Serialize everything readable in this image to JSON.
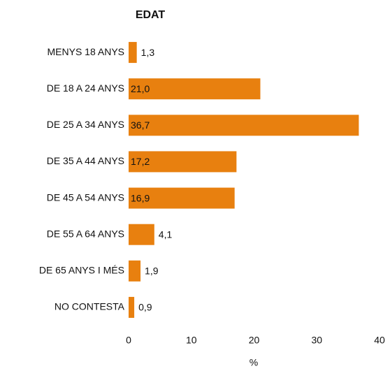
{
  "chart_data": {
    "type": "bar",
    "orientation": "horizontal",
    "title": "EDAT",
    "categories": [
      "MENYS 18 ANYS",
      "DE 18 A 24 ANYS",
      "DE 25 A 34 ANYS",
      "DE 35 A 44 ANYS",
      "DE 45 A 54 ANYS",
      "DE 55 A 64 ANYS",
      "DE 65 ANYS I MÉS",
      "NO CONTESTA"
    ],
    "values": [
      1.3,
      21.0,
      36.7,
      17.2,
      16.9,
      4.1,
      1.9,
      0.9
    ],
    "value_labels": [
      "1,3",
      "21,0",
      "36,7",
      "17,2",
      "16,9",
      "4,1",
      "1,9",
      "0,9"
    ],
    "color": "#e8800f",
    "xlabel": "%",
    "xlim": [
      0,
      40
    ],
    "xticks": [
      0,
      10,
      20,
      30,
      40
    ],
    "grid": false
  }
}
